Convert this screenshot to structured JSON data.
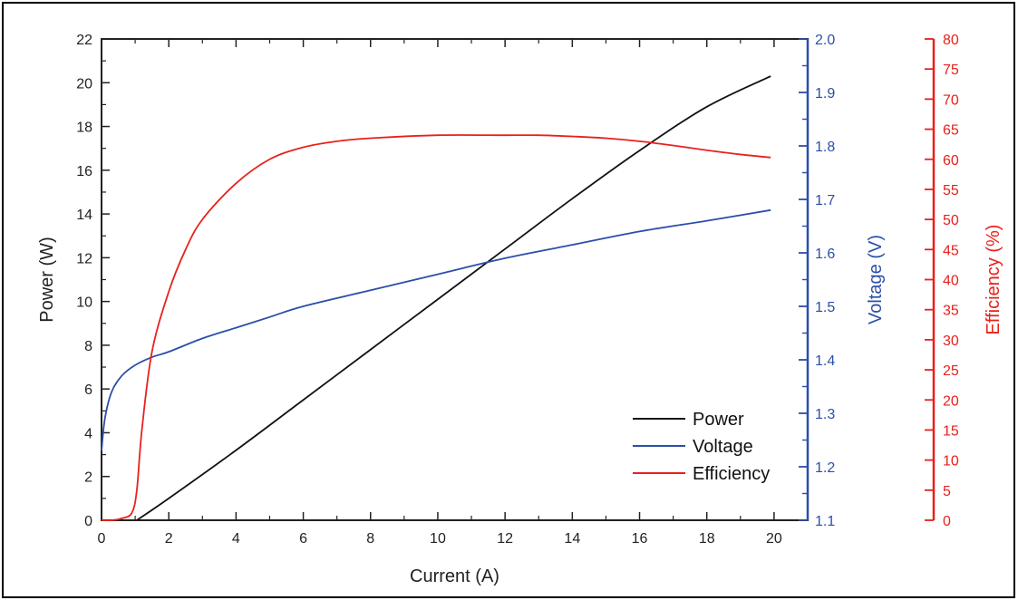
{
  "chart_data": {
    "type": "line",
    "x_axis": {
      "label": "Current (A)",
      "range": [
        0,
        21
      ],
      "ticks": [
        0,
        2,
        4,
        6,
        8,
        10,
        12,
        14,
        16,
        18,
        20
      ],
      "tick_labels": [
        "0",
        "2",
        "4",
        "6",
        "8",
        "10",
        "12",
        "14",
        "16",
        "18",
        "20"
      ]
    },
    "y_axes": [
      {
        "id": "power",
        "label": "Power (W)",
        "range": [
          0,
          22
        ],
        "ticks": [
          0,
          2,
          4,
          6,
          8,
          10,
          12,
          14,
          16,
          18,
          20,
          22
        ],
        "tick_labels": [
          "0",
          "2",
          "4",
          "6",
          "8",
          "10",
          "12",
          "14",
          "16",
          "18",
          "20",
          "22"
        ],
        "color": "#111111",
        "side": "left"
      },
      {
        "id": "voltage",
        "label": "Voltage (V)",
        "range": [
          1.1,
          2.0
        ],
        "ticks": [
          1.1,
          1.2,
          1.3,
          1.4,
          1.5,
          1.6,
          1.7,
          1.8,
          1.9,
          2.0
        ],
        "tick_labels": [
          "1.1",
          "1.2",
          "1.3",
          "1.4",
          "1.5",
          "1.6",
          "1.7",
          "1.8",
          "1.9",
          "2.0"
        ],
        "color": "#2b4fa8",
        "side": "right"
      },
      {
        "id": "efficiency",
        "label": "Efficiency (%)",
        "range": [
          0,
          80
        ],
        "ticks": [
          0,
          5,
          10,
          15,
          20,
          25,
          30,
          35,
          40,
          45,
          50,
          55,
          60,
          65,
          70,
          75,
          80
        ],
        "tick_labels": [
          "0",
          "5",
          "10",
          "15",
          "20",
          "25",
          "30",
          "35",
          "40",
          "45",
          "50",
          "55",
          "60",
          "65",
          "70",
          "75",
          "80"
        ],
        "color": "#e8211c",
        "side": "right-outer"
      }
    ],
    "series": [
      {
        "name": "Power",
        "axis": "power",
        "color": "#111111",
        "x": [
          1.05,
          2,
          4,
          6,
          8,
          10,
          12,
          14,
          16,
          18,
          19.9
        ],
        "y": [
          0,
          1.0,
          3.2,
          5.5,
          7.8,
          10.1,
          12.4,
          14.7,
          16.9,
          18.9,
          20.3
        ]
      },
      {
        "name": "Voltage",
        "axis": "voltage",
        "color": "#2b4fa8",
        "x": [
          0,
          0.1,
          0.3,
          0.6,
          1.0,
          1.5,
          2,
          3,
          4,
          5,
          6,
          8,
          10,
          12,
          14,
          16,
          18,
          19.9
        ],
        "y": [
          1.23,
          1.29,
          1.34,
          1.37,
          1.39,
          1.405,
          1.415,
          1.44,
          1.46,
          1.48,
          1.5,
          1.53,
          1.56,
          1.59,
          1.615,
          1.64,
          1.66,
          1.68
        ]
      },
      {
        "name": "Efficiency",
        "axis": "efficiency",
        "color": "#e8211c",
        "x": [
          0,
          0.3,
          0.6,
          0.9,
          1.05,
          1.2,
          1.5,
          2.0,
          2.5,
          3,
          4,
          5,
          6,
          7,
          8,
          10,
          12,
          13,
          14,
          15,
          16,
          17,
          18,
          19,
          19.9
        ],
        "y": [
          0,
          0,
          0.3,
          1.2,
          5,
          15,
          28,
          38,
          45,
          50,
          56,
          60,
          62,
          63,
          63.5,
          64,
          64,
          64,
          63.8,
          63.5,
          63,
          62.3,
          61.5,
          60.8,
          60.3
        ]
      }
    ],
    "legend": {
      "placement": "bottom-right",
      "entries": [
        "Power",
        "Voltage",
        "Efficiency"
      ]
    },
    "grid": false
  }
}
